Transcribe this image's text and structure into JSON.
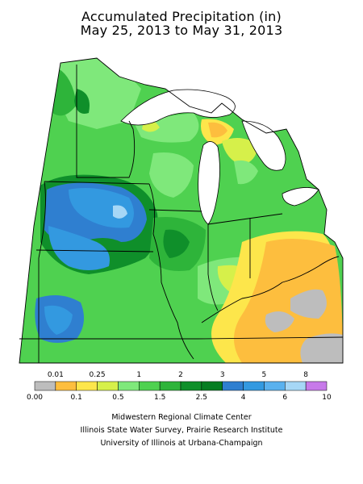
{
  "title": {
    "line1": "Accumulated Precipitation (in)",
    "line2": "May 25, 2013 to May 31, 2013"
  },
  "colors": {
    "background": "#ffffff",
    "lake": "#ffffff",
    "outline": "#000000",
    "c_000": "#bdbdbd",
    "c_001": "#fdbe3e",
    "c_01": "#fde64b",
    "c_025": "#d6f04a",
    "c_05": "#7fe87b",
    "c_1": "#4fd150",
    "c_15": "#2eb43a",
    "c_2": "#0f8f2a",
    "c_25": "#3399e0",
    "c_3": "#2f7fd0",
    "c_4": "#5ab1ee",
    "c_5": "#a6d7f6",
    "c_8": "#c77ae9"
  },
  "legend": {
    "top_labels": [
      "0.01",
      "0.25",
      "1",
      "2",
      "3",
      "5",
      "8"
    ],
    "bottom_labels": [
      "0.00",
      "0.1",
      "0.5",
      "1.5",
      "2.5",
      "4",
      "6",
      "10"
    ],
    "bins": [
      {
        "range": "0.00-0.01",
        "color": "#bdbdbd"
      },
      {
        "range": "0.01-0.1",
        "color": "#fdbe3e"
      },
      {
        "range": "0.1-0.25",
        "color": "#fde64b"
      },
      {
        "range": "0.25-0.5",
        "color": "#d6f04a"
      },
      {
        "range": "0.5-1",
        "color": "#7fe87b"
      },
      {
        "range": "1-1.5",
        "color": "#4fd150"
      },
      {
        "range": "1.5-2",
        "color": "#2eb43a"
      },
      {
        "range": "2-2.5",
        "color": "#0f8f2a"
      },
      {
        "range": "2.5-3",
        "color": "#067d22"
      },
      {
        "range": "3-4",
        "color": "#2f7fd0"
      },
      {
        "range": "4-5",
        "color": "#3399e0"
      },
      {
        "range": "5-6",
        "color": "#5ab1ee"
      },
      {
        "range": "6-8",
        "color": "#a6d7f6"
      },
      {
        "range": "8-10",
        "color": "#c77ae9"
      }
    ]
  },
  "credits": {
    "line1": "Midwestern Regional Climate Center",
    "line2": "Illinois State Water Survey, Prairie Research Institute",
    "line3": "University of Illinois at Urbana-Champaign"
  }
}
